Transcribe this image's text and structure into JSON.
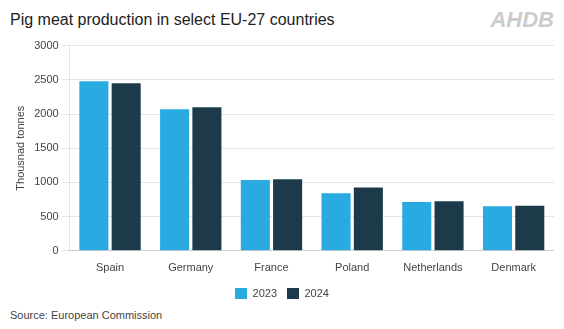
{
  "chart_data": {
    "type": "bar",
    "title": "Pig meat production in select EU-27 countries",
    "ylabel": "Thousnad tonnes",
    "annotations": [
      "Source: European Commission",
      "AHDB"
    ],
    "categories": [
      "Spain",
      "Germany",
      "France",
      "Poland",
      "Netherlands",
      "Denmark"
    ],
    "series": [
      {
        "name": "2023",
        "color": "#29ABE2",
        "values": [
          2480,
          2070,
          1035,
          840,
          715,
          650
        ]
      },
      {
        "name": "2024",
        "color": "#1C3A4A",
        "values": [
          2450,
          2100,
          1045,
          925,
          725,
          660
        ]
      }
    ],
    "ylim": [
      0,
      3000
    ],
    "yticks": [
      0,
      500,
      1000,
      1500,
      2000,
      2500,
      3000
    ],
    "grid": true,
    "legend": "bottom"
  }
}
